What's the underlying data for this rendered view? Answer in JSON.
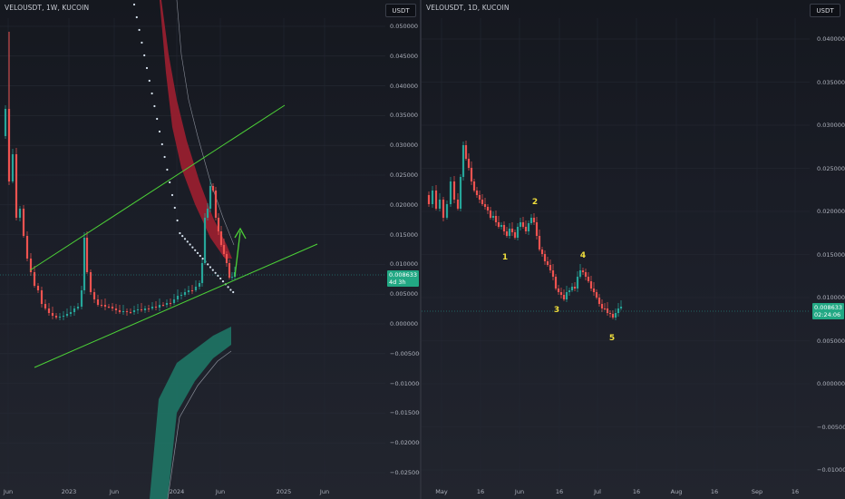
{
  "left_chart": {
    "title": "VELOUSDT, 1W, KUCOIN",
    "currency": "USDT",
    "price_labels": [
      "0.050000",
      "0.045000",
      "0.040000",
      "0.035000",
      "0.030000",
      "0.025000",
      "0.020000",
      "0.015000",
      "0.010000",
      "0.005000",
      "0.000000",
      "−0.005000",
      "−0.010000",
      "−0.015000",
      "−0.020000",
      "−0.025000"
    ],
    "time_labels": [
      "Jun",
      "2023",
      "Jun",
      "2024",
      "Jun",
      "2025",
      "Jun"
    ],
    "last_price": "0.008633",
    "countdown": "4d 3h"
  },
  "right_chart": {
    "title": "VELOUSDT, 1D, KUCOIN",
    "currency": "USDT",
    "price_labels": [
      "0.040000",
      "0.035000",
      "0.030000",
      "0.025000",
      "0.020000",
      "0.015000",
      "0.010000",
      "0.005000",
      "0.000000",
      "−0.005000",
      "−0.010000"
    ],
    "time_labels": [
      "May",
      "16",
      "Jun",
      "16",
      "Jul",
      "16",
      "Aug",
      "16",
      "Sep",
      "16"
    ],
    "last_price": "0.008633",
    "countdown": "02:24:06",
    "wave_labels": [
      "1",
      "2",
      "3",
      "4",
      "5"
    ]
  },
  "colors": {
    "up": "#26a69a",
    "down": "#ef5350",
    "trendline": "#4cd137",
    "wave": "#f0de3c",
    "price_tag": "#22a884"
  }
}
